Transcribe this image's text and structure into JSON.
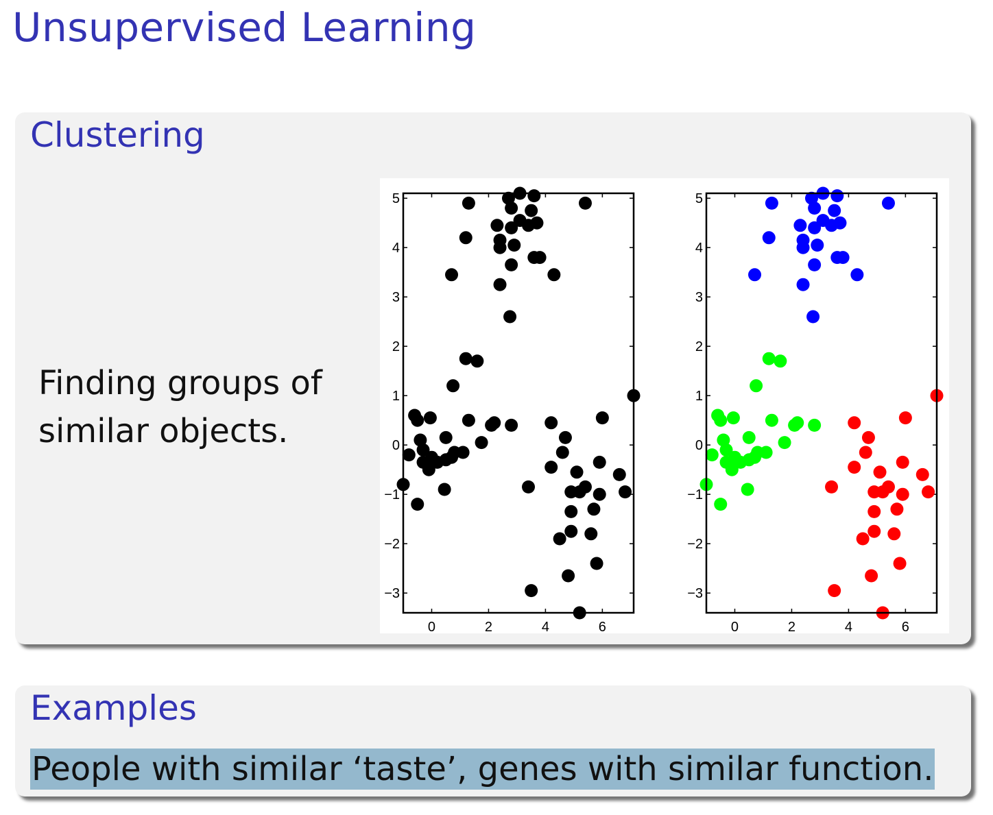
{
  "slide": {
    "title": "Unsupervised Learning"
  },
  "clustering": {
    "title": "Clustering",
    "description_line1": "Finding groups of",
    "description_line2": "similar objects."
  },
  "examples": {
    "title": "Examples",
    "text": "People with similar ‘taste’, genes with similar function."
  },
  "colors": {
    "title": "#3333b3",
    "block_bg": "#f2f2f2",
    "highlight": "#94b8cd",
    "unclustered": "#000000",
    "cluster_blue": "#0000ff",
    "cluster_green": "#00ff00",
    "cluster_red": "#ff0000"
  },
  "chart_data": [
    {
      "type": "scatter",
      "title": "",
      "xlabel": "",
      "ylabel": "",
      "xlim": [
        -1.0,
        7.1
      ],
      "ylim": [
        -3.4,
        5.1
      ],
      "xticks": [
        0,
        2,
        4,
        6
      ],
      "yticks": [
        -3,
        -2,
        -1,
        0,
        1,
        2,
        3,
        4,
        5
      ],
      "grid": false,
      "series": [
        {
          "color": "#000000",
          "points": [
            [
              1.3,
              4.9
            ],
            [
              2.7,
              5.0
            ],
            [
              3.1,
              5.1
            ],
            [
              3.6,
              5.05
            ],
            [
              2.8,
              4.8
            ],
            [
              3.5,
              4.75
            ],
            [
              3.1,
              4.55
            ],
            [
              2.3,
              4.45
            ],
            [
              2.8,
              4.4
            ],
            [
              3.4,
              4.45
            ],
            [
              3.7,
              4.5
            ],
            [
              1.2,
              4.2
            ],
            [
              2.4,
              4.15
            ],
            [
              2.4,
              4.0
            ],
            [
              2.9,
              4.05
            ],
            [
              3.6,
              3.8
            ],
            [
              3.8,
              3.8
            ],
            [
              2.8,
              3.65
            ],
            [
              0.7,
              3.45
            ],
            [
              4.3,
              3.45
            ],
            [
              2.4,
              3.25
            ],
            [
              2.75,
              2.6
            ],
            [
              5.4,
              4.9
            ],
            [
              1.2,
              1.75
            ],
            [
              1.6,
              1.7
            ],
            [
              0.75,
              1.2
            ],
            [
              -0.6,
              0.6
            ],
            [
              -0.5,
              0.5
            ],
            [
              -0.05,
              0.55
            ],
            [
              1.3,
              0.5
            ],
            [
              2.1,
              0.4
            ],
            [
              2.2,
              0.45
            ],
            [
              2.8,
              0.4
            ],
            [
              -0.4,
              0.1
            ],
            [
              0.5,
              0.15
            ],
            [
              -0.8,
              -0.2
            ],
            [
              -0.3,
              -0.1
            ],
            [
              0.0,
              -0.25
            ],
            [
              0.2,
              -0.35
            ],
            [
              0.5,
              -0.3
            ],
            [
              0.7,
              -0.25
            ],
            [
              0.8,
              -0.15
            ],
            [
              1.1,
              -0.15
            ],
            [
              1.75,
              0.05
            ],
            [
              -0.3,
              -0.35
            ],
            [
              -0.1,
              -0.5
            ],
            [
              -1.0,
              -0.8
            ],
            [
              0.45,
              -0.9
            ],
            [
              -0.5,
              -1.2
            ],
            [
              4.2,
              0.45
            ],
            [
              4.7,
              0.15
            ],
            [
              6.0,
              0.55
            ],
            [
              4.6,
              -0.15
            ],
            [
              5.9,
              -0.35
            ],
            [
              4.2,
              -0.45
            ],
            [
              5.1,
              -0.55
            ],
            [
              6.6,
              -0.6
            ],
            [
              5.4,
              -0.85
            ],
            [
              4.9,
              -0.95
            ],
            [
              5.2,
              -0.95
            ],
            [
              6.8,
              -0.95
            ],
            [
              5.9,
              -1.0
            ],
            [
              3.4,
              -0.85
            ],
            [
              4.9,
              -1.35
            ],
            [
              5.7,
              -1.3
            ],
            [
              4.9,
              -1.75
            ],
            [
              5.6,
              -1.8
            ],
            [
              4.5,
              -1.9
            ],
            [
              5.8,
              -2.4
            ],
            [
              4.8,
              -2.65
            ],
            [
              3.5,
              -2.95
            ],
            [
              5.2,
              -3.4
            ],
            [
              7.1,
              1.0
            ]
          ]
        }
      ]
    },
    {
      "type": "scatter",
      "title": "",
      "xlabel": "",
      "ylabel": "",
      "xlim": [
        -1.0,
        7.1
      ],
      "ylim": [
        -3.4,
        5.1
      ],
      "xticks": [
        0,
        2,
        4,
        6
      ],
      "yticks": [
        -3,
        -2,
        -1,
        0,
        1,
        2,
        3,
        4,
        5
      ],
      "grid": false,
      "series": [
        {
          "color": "#0000ff",
          "points": [
            [
              1.3,
              4.9
            ],
            [
              2.7,
              5.0
            ],
            [
              3.1,
              5.1
            ],
            [
              3.6,
              5.05
            ],
            [
              2.8,
              4.8
            ],
            [
              3.5,
              4.75
            ],
            [
              3.1,
              4.55
            ],
            [
              2.3,
              4.45
            ],
            [
              2.8,
              4.4
            ],
            [
              3.4,
              4.45
            ],
            [
              3.7,
              4.5
            ],
            [
              1.2,
              4.2
            ],
            [
              2.4,
              4.15
            ],
            [
              2.4,
              4.0
            ],
            [
              2.9,
              4.05
            ],
            [
              3.6,
              3.8
            ],
            [
              3.8,
              3.8
            ],
            [
              2.8,
              3.65
            ],
            [
              0.7,
              3.45
            ],
            [
              4.3,
              3.45
            ],
            [
              2.4,
              3.25
            ],
            [
              2.75,
              2.6
            ],
            [
              5.4,
              4.9
            ]
          ]
        },
        {
          "color": "#00ff00",
          "points": [
            [
              1.2,
              1.75
            ],
            [
              1.6,
              1.7
            ],
            [
              0.75,
              1.2
            ],
            [
              -0.6,
              0.6
            ],
            [
              -0.5,
              0.5
            ],
            [
              -0.05,
              0.55
            ],
            [
              1.3,
              0.5
            ],
            [
              2.1,
              0.4
            ],
            [
              2.2,
              0.45
            ],
            [
              2.8,
              0.4
            ],
            [
              -0.4,
              0.1
            ],
            [
              0.5,
              0.15
            ],
            [
              -0.8,
              -0.2
            ],
            [
              -0.3,
              -0.1
            ],
            [
              0.0,
              -0.25
            ],
            [
              0.2,
              -0.35
            ],
            [
              0.5,
              -0.3
            ],
            [
              0.7,
              -0.25
            ],
            [
              0.8,
              -0.15
            ],
            [
              1.1,
              -0.15
            ],
            [
              1.75,
              0.05
            ],
            [
              -0.3,
              -0.35
            ],
            [
              -0.1,
              -0.5
            ],
            [
              -1.0,
              -0.8
            ],
            [
              0.45,
              -0.9
            ],
            [
              -0.5,
              -1.2
            ]
          ]
        },
        {
          "color": "#ff0000",
          "points": [
            [
              4.2,
              0.45
            ],
            [
              4.7,
              0.15
            ],
            [
              6.0,
              0.55
            ],
            [
              4.6,
              -0.15
            ],
            [
              5.9,
              -0.35
            ],
            [
              4.2,
              -0.45
            ],
            [
              5.1,
              -0.55
            ],
            [
              6.6,
              -0.6
            ],
            [
              5.4,
              -0.85
            ],
            [
              4.9,
              -0.95
            ],
            [
              5.2,
              -0.95
            ],
            [
              6.8,
              -0.95
            ],
            [
              5.9,
              -1.0
            ],
            [
              3.4,
              -0.85
            ],
            [
              4.9,
              -1.35
            ],
            [
              5.7,
              -1.3
            ],
            [
              4.9,
              -1.75
            ],
            [
              5.6,
              -1.8
            ],
            [
              4.5,
              -1.9
            ],
            [
              5.8,
              -2.4
            ],
            [
              4.8,
              -2.65
            ],
            [
              3.5,
              -2.95
            ],
            [
              5.2,
              -3.4
            ],
            [
              7.1,
              1.0
            ]
          ]
        }
      ]
    }
  ]
}
